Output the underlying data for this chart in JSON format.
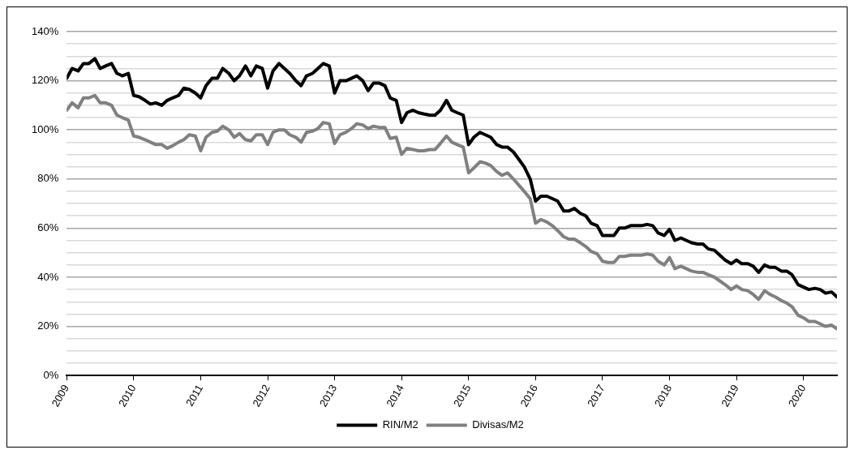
{
  "chart_data": {
    "type": "line",
    "x": [
      2009,
      2009.08,
      2009.17,
      2009.25,
      2009.33,
      2009.42,
      2009.5,
      2009.58,
      2009.67,
      2009.75,
      2009.83,
      2009.92,
      2010,
      2010.08,
      2010.17,
      2010.25,
      2010.33,
      2010.42,
      2010.5,
      2010.58,
      2010.67,
      2010.75,
      2010.83,
      2010.92,
      2011,
      2011.08,
      2011.17,
      2011.25,
      2011.33,
      2011.42,
      2011.5,
      2011.58,
      2011.67,
      2011.75,
      2011.83,
      2011.92,
      2012,
      2012.08,
      2012.17,
      2012.25,
      2012.33,
      2012.42,
      2012.5,
      2012.58,
      2012.67,
      2012.75,
      2012.83,
      2012.92,
      2013,
      2013.08,
      2013.17,
      2013.25,
      2013.33,
      2013.42,
      2013.5,
      2013.58,
      2013.67,
      2013.75,
      2013.83,
      2013.92,
      2014,
      2014.08,
      2014.17,
      2014.25,
      2014.33,
      2014.42,
      2014.5,
      2014.58,
      2014.67,
      2014.75,
      2014.83,
      2014.92,
      2015,
      2015.08,
      2015.17,
      2015.25,
      2015.33,
      2015.42,
      2015.5,
      2015.58,
      2015.67,
      2015.75,
      2015.83,
      2015.92,
      2016,
      2016.08,
      2016.17,
      2016.25,
      2016.33,
      2016.42,
      2016.5,
      2016.58,
      2016.67,
      2016.75,
      2016.83,
      2016.92,
      2017,
      2017.08,
      2017.17,
      2017.25,
      2017.33,
      2017.42,
      2017.5,
      2017.58,
      2017.67,
      2017.75,
      2017.83,
      2017.92,
      2018,
      2018.08,
      2018.17,
      2018.25,
      2018.33,
      2018.42,
      2018.5,
      2018.58,
      2018.67,
      2018.75,
      2018.83,
      2018.92,
      2019,
      2019.08,
      2019.17,
      2019.25,
      2019.33,
      2019.42,
      2019.5,
      2019.58,
      2019.67,
      2019.75,
      2019.83,
      2019.92,
      2020,
      2020.08,
      2020.17,
      2020.25,
      2020.33,
      2020.42,
      2020.5
    ],
    "series": [
      {
        "name": "RIN/M2",
        "color": "#000000",
        "values": [
          121,
          125,
          124,
          127,
          127,
          129,
          125,
          126,
          127,
          123,
          122,
          123,
          114,
          113.5,
          112,
          110.5,
          111,
          110,
          112,
          113,
          114,
          117,
          116.5,
          115,
          113,
          118,
          121,
          121,
          125,
          123,
          120,
          122,
          126,
          122,
          126,
          125,
          117,
          124,
          127,
          125,
          123,
          120,
          118,
          122,
          123,
          125,
          127,
          126,
          115,
          120,
          120,
          121,
          122,
          120,
          116,
          119,
          119,
          118,
          113,
          112,
          103,
          107,
          108,
          107,
          106.5,
          106,
          106,
          108,
          112,
          108,
          107,
          106,
          94,
          97,
          99,
          98,
          97,
          94,
          93,
          93,
          91,
          88,
          85,
          80,
          71,
          73,
          73,
          72,
          71,
          67,
          67,
          68,
          66,
          65,
          62,
          61,
          57,
          57,
          57,
          60,
          60,
          61,
          61,
          61,
          61.5,
          61,
          58,
          57,
          59.5,
          55,
          56,
          55,
          54,
          53.5,
          53.5,
          51.5,
          51,
          49,
          47,
          45.5,
          47,
          45.5,
          45.5,
          44.5,
          42,
          45,
          44,
          44,
          42.5,
          42.5,
          41,
          37,
          36,
          35,
          35.5,
          35,
          33.5,
          34,
          32
        ]
      },
      {
        "name": "Divisas/M2",
        "color": "#808080",
        "values": [
          108,
          111,
          109,
          113,
          113,
          114,
          111,
          111,
          110,
          106,
          105,
          104,
          97.5,
          97,
          96,
          95,
          94,
          94,
          92.5,
          93.5,
          95,
          96,
          98,
          97.5,
          91.5,
          97,
          99,
          99.5,
          101.5,
          100,
          97,
          98.5,
          96,
          95.5,
          98,
          98,
          94,
          99,
          100,
          100,
          98,
          97,
          95,
          99,
          99.5,
          100.5,
          103,
          102.5,
          94.5,
          98,
          99,
          100.5,
          102.5,
          102,
          100.5,
          101.5,
          101,
          101,
          96.5,
          97,
          90,
          92.5,
          92,
          91.5,
          91.5,
          92,
          92,
          94.5,
          97.5,
          95,
          94,
          93,
          82.5,
          84.5,
          87,
          86.5,
          85.5,
          83,
          81.5,
          82.5,
          80,
          77.5,
          75,
          72,
          62,
          63.5,
          62.5,
          61,
          59,
          56.5,
          55.5,
          55.5,
          54,
          52.5,
          50.5,
          49.5,
          46.5,
          46,
          46,
          48.5,
          48.5,
          49,
          49,
          49,
          49.5,
          49,
          46.5,
          45,
          48,
          43.5,
          44.5,
          43.5,
          42.5,
          42,
          42,
          41,
          40,
          38.5,
          37,
          35,
          36.5,
          35,
          34.5,
          33,
          31,
          34.5,
          33,
          32,
          30.5,
          29.5,
          28,
          24.5,
          23.5,
          22,
          22,
          21,
          20,
          20.5,
          19
        ]
      }
    ],
    "xlim": [
      2009,
      2020.5
    ],
    "xticks": [
      2009,
      2010,
      2011,
      2012,
      2013,
      2014,
      2015,
      2016,
      2017,
      2018,
      2019,
      2020
    ],
    "ylim": [
      0,
      140
    ],
    "yticks": [
      {
        "value": 0,
        "label": "0%"
      },
      {
        "value": 5,
        "label": null
      },
      {
        "value": 10,
        "label": null
      },
      {
        "value": 15,
        "label": null
      },
      {
        "value": 20,
        "label": "20%"
      },
      {
        "value": 25,
        "label": null
      },
      {
        "value": 30,
        "label": null
      },
      {
        "value": 35,
        "label": null
      },
      {
        "value": 40,
        "label": "40%"
      },
      {
        "value": 45,
        "label": null
      },
      {
        "value": 50,
        "label": null
      },
      {
        "value": 55,
        "label": null
      },
      {
        "value": 60,
        "label": "60%"
      },
      {
        "value": 65,
        "label": null
      },
      {
        "value": 70,
        "label": null
      },
      {
        "value": 75,
        "label": null
      },
      {
        "value": 80,
        "label": "80%"
      },
      {
        "value": 85,
        "label": null
      },
      {
        "value": 90,
        "label": null
      },
      {
        "value": 95,
        "label": null
      },
      {
        "value": 100,
        "label": "100%"
      },
      {
        "value": 105,
        "label": null
      },
      {
        "value": 110,
        "label": null
      },
      {
        "value": 115,
        "label": null
      },
      {
        "value": 120,
        "label": "120%"
      },
      {
        "value": 125,
        "label": null
      },
      {
        "value": 130,
        "label": null
      },
      {
        "value": 135,
        "label": null
      },
      {
        "value": 140,
        "label": "140%"
      }
    ],
    "grid": "y",
    "legend": "bottom",
    "marker": "none",
    "line_style": "solid"
  }
}
